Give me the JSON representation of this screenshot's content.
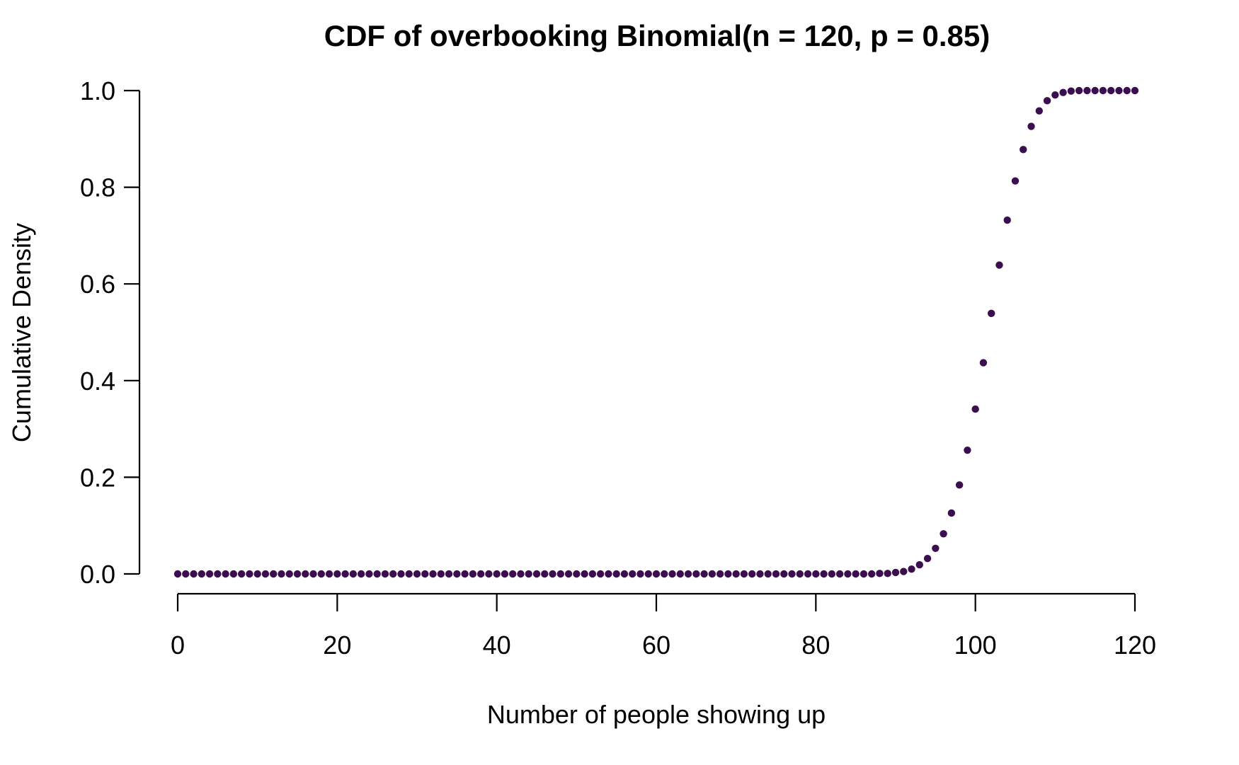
{
  "chart_data": {
    "type": "scatter",
    "title": "CDF of overbooking Binomial(n = 120, p = 0.85)",
    "xlabel": "Number of people showing up",
    "ylabel": "Cumulative Density",
    "xlim": [
      0,
      120
    ],
    "ylim": [
      0,
      1
    ],
    "xticks": [
      "0",
      "20",
      "40",
      "60",
      "80",
      "100",
      "120"
    ],
    "yticks": [
      "0.0",
      "0.2",
      "0.4",
      "0.6",
      "0.8",
      "1.0"
    ],
    "grid": false,
    "legend": "none",
    "point_color": "#3b0f4f",
    "x": [
      0,
      1,
      2,
      3,
      4,
      5,
      6,
      7,
      8,
      9,
      10,
      11,
      12,
      13,
      14,
      15,
      16,
      17,
      18,
      19,
      20,
      21,
      22,
      23,
      24,
      25,
      26,
      27,
      28,
      29,
      30,
      31,
      32,
      33,
      34,
      35,
      36,
      37,
      38,
      39,
      40,
      41,
      42,
      43,
      44,
      45,
      46,
      47,
      48,
      49,
      50,
      51,
      52,
      53,
      54,
      55,
      56,
      57,
      58,
      59,
      60,
      61,
      62,
      63,
      64,
      65,
      66,
      67,
      68,
      69,
      70,
      71,
      72,
      73,
      74,
      75,
      76,
      77,
      78,
      79,
      80,
      81,
      82,
      83,
      84,
      85,
      86,
      87,
      88,
      89,
      90,
      91,
      92,
      93,
      94,
      95,
      96,
      97,
      98,
      99,
      100,
      101,
      102,
      103,
      104,
      105,
      106,
      107,
      108,
      109,
      110,
      111,
      112,
      113,
      114,
      115,
      116,
      117,
      118,
      119,
      120
    ],
    "y": [
      0,
      0,
      0,
      0,
      0,
      0,
      0,
      0,
      0,
      0,
      0,
      0,
      0,
      0,
      0,
      0,
      0,
      0,
      0,
      0,
      0,
      0,
      0,
      0,
      0,
      0,
      0,
      0,
      0,
      0,
      0,
      0,
      0,
      0,
      0,
      0,
      0,
      0,
      0,
      0,
      0,
      0,
      0,
      0,
      0,
      0,
      0,
      0,
      0,
      0,
      0,
      0,
      0,
      0,
      0,
      0,
      0,
      0,
      0,
      0,
      0,
      0,
      0,
      0,
      0,
      0,
      0,
      0,
      0,
      0,
      0,
      0,
      0,
      0,
      0,
      0,
      0,
      0,
      0,
      0,
      0,
      0,
      0,
      0,
      0,
      0,
      0,
      0,
      0.001,
      0.001,
      0.003,
      0.005,
      0.01,
      0.019,
      0.032,
      0.053,
      0.083,
      0.126,
      0.184,
      0.256,
      0.341,
      0.437,
      0.539,
      0.639,
      0.732,
      0.813,
      0.878,
      0.926,
      0.958,
      0.979,
      0.991,
      0.996,
      0.999,
      1.0,
      1.0,
      1.0,
      1.0,
      1.0,
      1.0,
      1.0,
      1.0
    ]
  }
}
